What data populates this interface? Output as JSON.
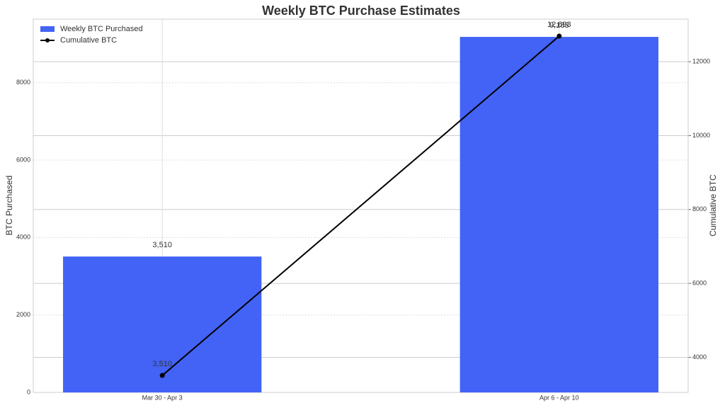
{
  "chart_data": {
    "type": "bar",
    "title": "Weekly BTC Purchase Estimates",
    "categories": [
      "Mar 30 - Apr 3",
      "Apr 6 - Apr 10"
    ],
    "series": [
      {
        "name": "Weekly BTC Purchased",
        "type": "bar",
        "color": "#4263f5",
        "values": [
          3510,
          9183
        ],
        "value_labels": [
          "3,510",
          "9,183"
        ]
      },
      {
        "name": "Cumulative BTC",
        "type": "line",
        "axis": "y2",
        "color": "#000000",
        "values": [
          3510,
          12693
        ],
        "value_labels": [
          "3,510",
          "12,693"
        ]
      }
    ],
    "ylabel": "BTC Purchased",
    "y2label": "Cumulative BTC",
    "ylim": [
      0,
      9642
    ],
    "yticks": [
      0,
      2000,
      4000,
      6000,
      8000
    ],
    "y2lim": [
      3051,
      13152
    ],
    "y2ticks": [
      4000,
      6000,
      8000,
      10000,
      12000
    ],
    "grid": true,
    "legend": "upper left"
  }
}
